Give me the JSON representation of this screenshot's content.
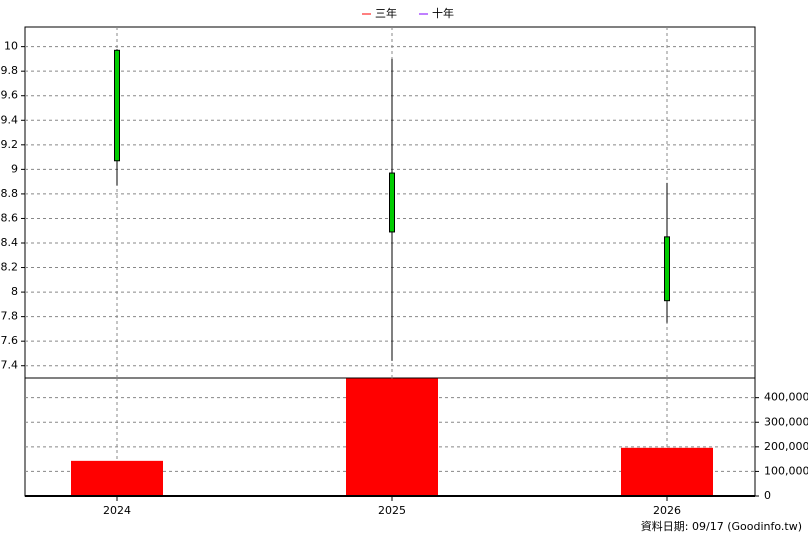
{
  "chart_data": [
    {
      "type": "candlestick",
      "legend": [
        {
          "name": "三年",
          "color": "#ff0000"
        },
        {
          "name": "十年",
          "color": "#8000ff"
        }
      ],
      "categories": [
        "2024",
        "2025",
        "2026"
      ],
      "open": [
        9.97,
        8.97,
        8.45
      ],
      "high": [
        9.98,
        9.9,
        8.89
      ],
      "low": [
        8.87,
        7.44,
        7.75
      ],
      "close": [
        9.07,
        8.49,
        7.93
      ],
      "color": "#00cc00",
      "ylim": [
        7.3,
        10.16
      ],
      "yticks": [
        7.4,
        7.6,
        7.8,
        8,
        8.2,
        8.4,
        8.6,
        8.8,
        9,
        9.2,
        9.4,
        9.6,
        9.8,
        10
      ],
      "grid": true
    },
    {
      "type": "bar",
      "categories": [
        "2024",
        "2025",
        "2026"
      ],
      "values": [
        143000,
        478000,
        196000
      ],
      "color": "#ff0000",
      "ylim": [
        0,
        480000
      ],
      "yticks": [
        0,
        {
          "value": 100000,
          "label": "100,000"
        },
        {
          "value": 200000,
          "label": "200,000"
        },
        {
          "value": 300000,
          "label": "300,000"
        },
        {
          "value": 400000,
          "label": "400,000"
        }
      ],
      "grid": true
    }
  ],
  "footer": "資料日期: 09/17 (Goodinfo.tw)"
}
